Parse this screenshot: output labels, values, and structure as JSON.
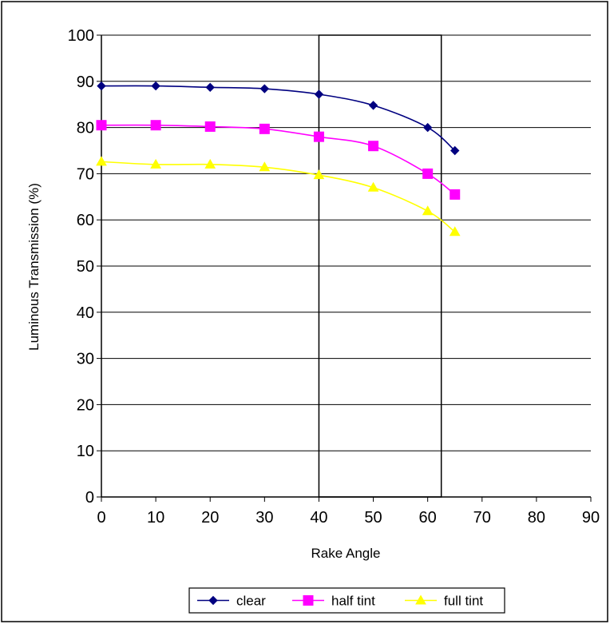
{
  "chart_data": {
    "type": "line",
    "title": "",
    "xlabel": "Rake Angle",
    "ylabel": "Luminous Transmission (%)",
    "xlim": [
      0,
      90
    ],
    "ylim": [
      0,
      100
    ],
    "xticks": [
      "0",
      "10",
      "20",
      "30",
      "40",
      "50",
      "60",
      "70",
      "80",
      "90"
    ],
    "yticks": [
      "0",
      "10",
      "20",
      "30",
      "40",
      "50",
      "60",
      "70",
      "80",
      "90",
      "100"
    ],
    "grid": "horizontal",
    "legend_position": "bottom",
    "highlight_region": {
      "x_from": 40,
      "x_to": 62.5
    },
    "series": [
      {
        "name": "clear",
        "color": "#000080",
        "marker": "diamond",
        "x": [
          0,
          10,
          20,
          30,
          40,
          50,
          60,
          65
        ],
        "y": [
          89,
          89,
          88.7,
          88.4,
          87.2,
          84.8,
          80,
          75
        ]
      },
      {
        "name": "half tint",
        "color": "#ff00ff",
        "marker": "square",
        "x": [
          0,
          10,
          20,
          30,
          40,
          50,
          60,
          65
        ],
        "y": [
          80.5,
          80.5,
          80.2,
          79.7,
          78,
          76,
          70,
          65.5
        ]
      },
      {
        "name": "full tint",
        "color": "#ffff00",
        "marker": "triangle",
        "x": [
          0,
          10,
          20,
          30,
          40,
          50,
          60,
          65
        ],
        "y": [
          72.6,
          72,
          72,
          71.4,
          69.7,
          67,
          61.9,
          57.4
        ]
      }
    ]
  }
}
